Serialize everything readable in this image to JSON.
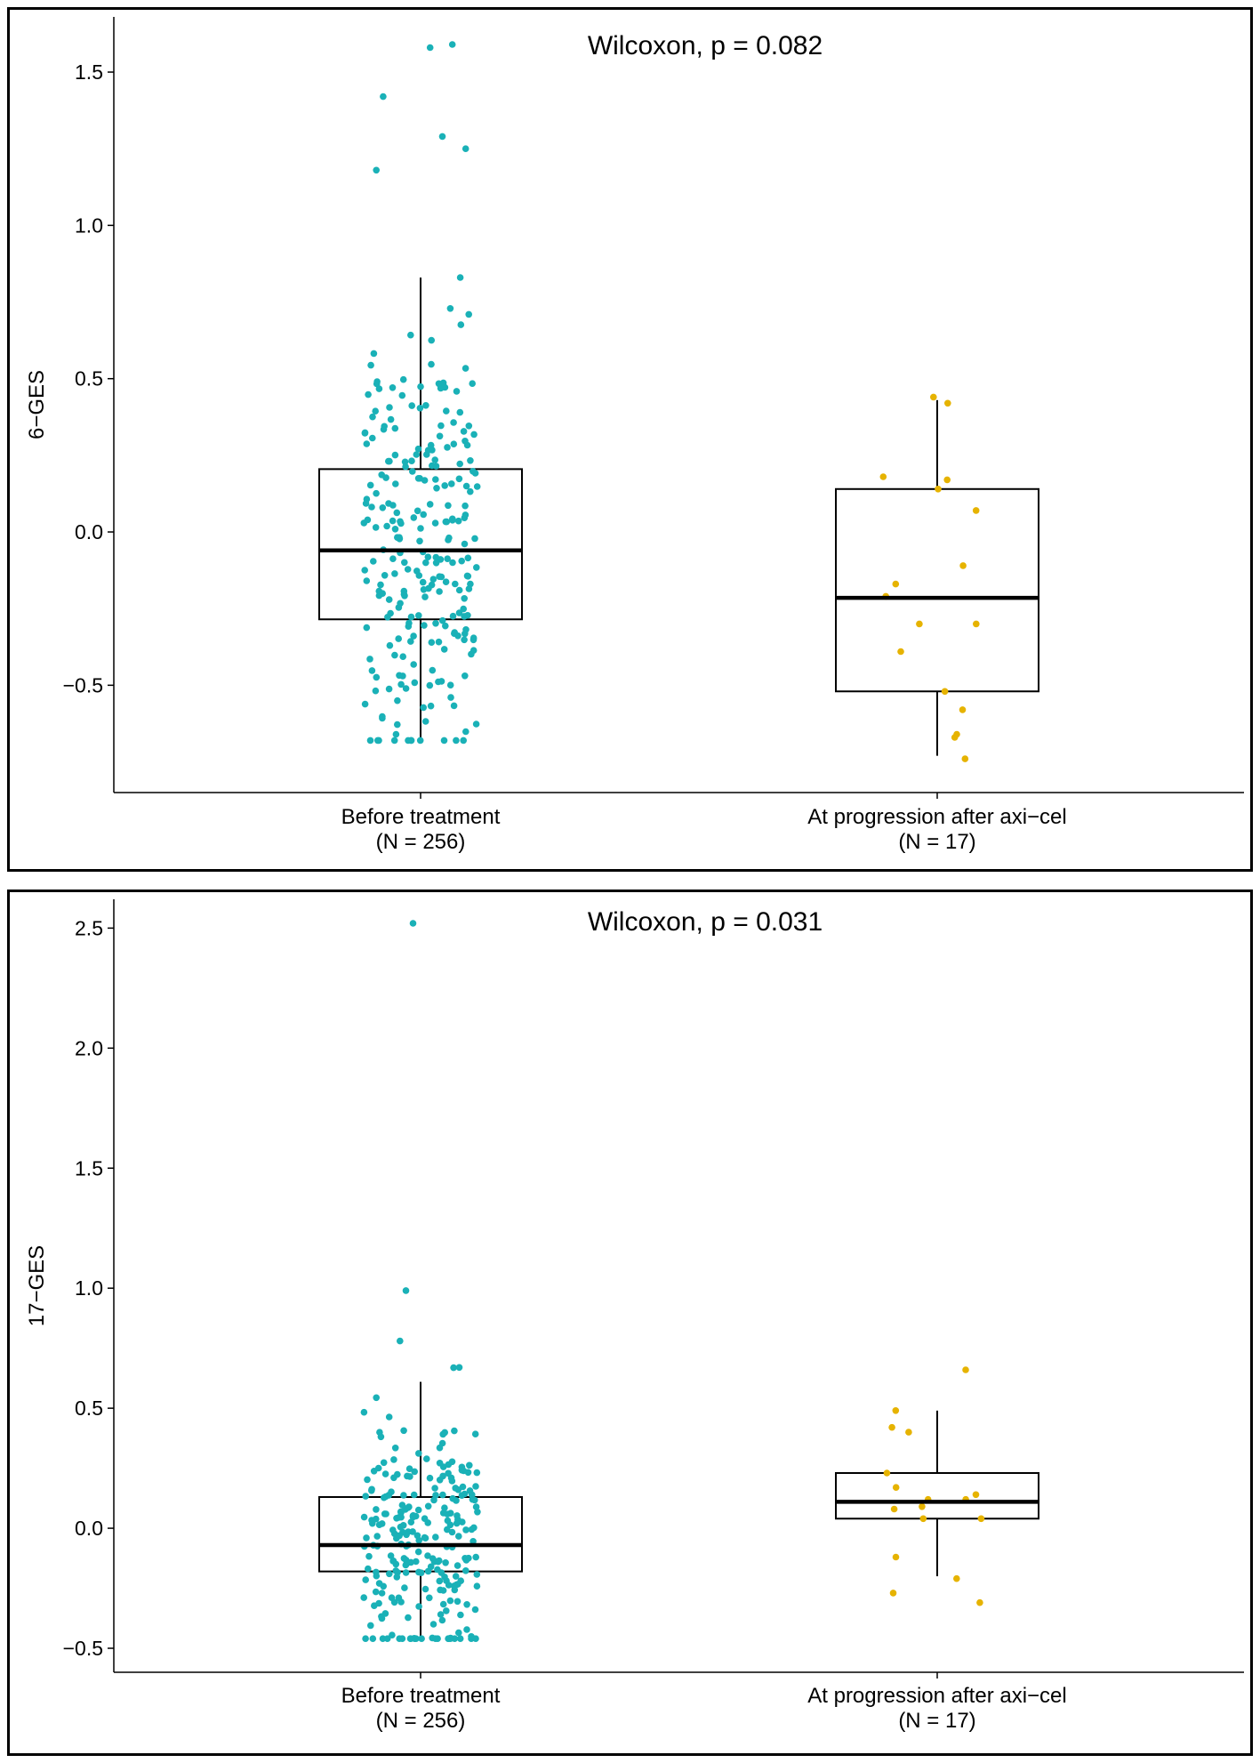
{
  "colors": {
    "before": "#1ab1b7",
    "after": "#e6b300",
    "box_line": "#000000"
  },
  "chart_data": [
    {
      "type": "boxplot",
      "title": "Wilcoxon, p = 0.082",
      "ylabel": "6−GES",
      "ylim": [
        -0.85,
        1.68
      ],
      "yticks": [
        -0.5,
        0.0,
        0.5,
        1.0,
        1.5
      ],
      "ytick_labels": [
        "−0.5",
        "0.0",
        "0.5",
        "1.0",
        "1.5"
      ],
      "categories": [
        {
          "label": "Before treatment",
          "n_label": "(N = 256)"
        },
        {
          "label": "At progression after axi−cel",
          "n_label": "(N = 17)"
        }
      ],
      "boxes": [
        {
          "group": "Before treatment",
          "whisker_low": -0.68,
          "q1": -0.285,
          "median": -0.06,
          "q3": 0.205,
          "whisker_high": 0.83
        },
        {
          "group": "At progression after axi−cel",
          "whisker_low": -0.73,
          "q1": -0.52,
          "median": -0.215,
          "q3": 0.14,
          "whisker_high": 0.43
        }
      ],
      "points": [
        {
          "group": "Before treatment",
          "n": 256,
          "outliers": [
            1.58,
            1.59,
            1.42,
            1.29,
            1.25,
            1.18
          ],
          "range": [
            -0.68,
            0.83
          ]
        },
        {
          "group": "At progression after axi−cel",
          "n": 17,
          "values": [
            0.44,
            0.42,
            0.18,
            0.17,
            0.14,
            0.07,
            -0.11,
            -0.17,
            -0.21,
            -0.3,
            -0.3,
            -0.39,
            -0.52,
            -0.58,
            -0.66,
            -0.67,
            -0.74
          ]
        }
      ]
    },
    {
      "type": "boxplot",
      "title": "Wilcoxon, p = 0.031",
      "ylabel": "17−GES",
      "ylim": [
        -0.6,
        2.62
      ],
      "yticks": [
        -0.5,
        0.0,
        0.5,
        1.0,
        1.5,
        2.0,
        2.5
      ],
      "ytick_labels": [
        "−0.5",
        "0.0",
        "0.5",
        "1.0",
        "1.5",
        "2.0",
        "2.5"
      ],
      "categories": [
        {
          "label": "Before treatment",
          "n_label": "(N = 256)"
        },
        {
          "label": "At progression after axi−cel",
          "n_label": "(N = 17)"
        }
      ],
      "boxes": [
        {
          "group": "Before treatment",
          "whisker_low": -0.46,
          "q1": -0.18,
          "median": -0.07,
          "q3": 0.13,
          "whisker_high": 0.61
        },
        {
          "group": "At progression after axi−cel",
          "whisker_low": -0.2,
          "q1": 0.04,
          "median": 0.11,
          "q3": 0.23,
          "whisker_high": 0.49
        }
      ],
      "points": [
        {
          "group": "Before treatment",
          "n": 256,
          "outliers": [
            2.52,
            0.99,
            0.78
          ],
          "range": [
            -0.46,
            0.67
          ]
        },
        {
          "group": "At progression after axi−cel",
          "n": 17,
          "values": [
            0.66,
            0.49,
            0.42,
            0.4,
            0.23,
            0.17,
            0.14,
            0.12,
            0.12,
            0.09,
            0.08,
            0.04,
            0.04,
            -0.12,
            -0.21,
            -0.27,
            -0.31
          ]
        }
      ]
    }
  ]
}
